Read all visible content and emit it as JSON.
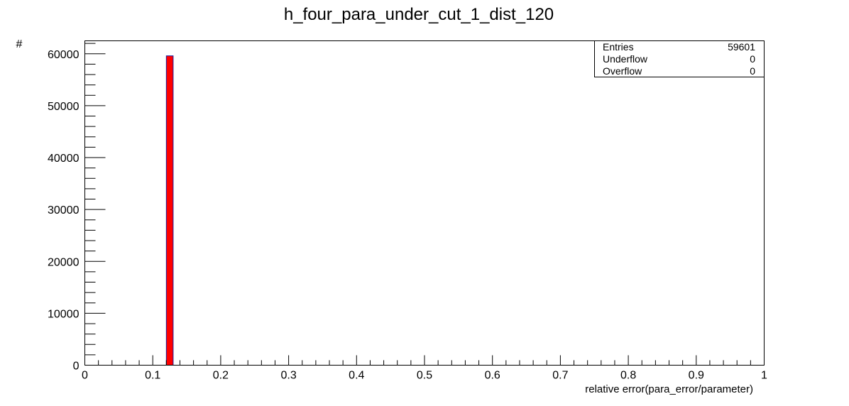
{
  "chart_data": {
    "type": "bar",
    "title": "h_four_para_under_cut_1_dist_120",
    "xlabel": "relative error(para_error/parameter)",
    "ylabel": "#",
    "xlim": [
      0,
      1
    ],
    "ylim": [
      0,
      62500
    ],
    "bin_width": 0.01,
    "x_ticks": [
      "0",
      "0.1",
      "0.2",
      "0.3",
      "0.4",
      "0.5",
      "0.6",
      "0.7",
      "0.8",
      "0.9",
      "1"
    ],
    "y_ticks": [
      "0",
      "10000",
      "20000",
      "30000",
      "40000",
      "50000",
      "60000"
    ],
    "bins": [
      {
        "x_low": 0.12,
        "x_high": 0.13,
        "value": 59601
      }
    ],
    "bar_color": "#ff0000",
    "bar_edge_color": "#1a1a99",
    "stats": [
      {
        "label": "Entries",
        "value": "59601"
      },
      {
        "label": "Underflow",
        "value": "0"
      },
      {
        "label": "Overflow",
        "value": "0"
      }
    ],
    "stats_placement": "top-right",
    "grid": false
  }
}
